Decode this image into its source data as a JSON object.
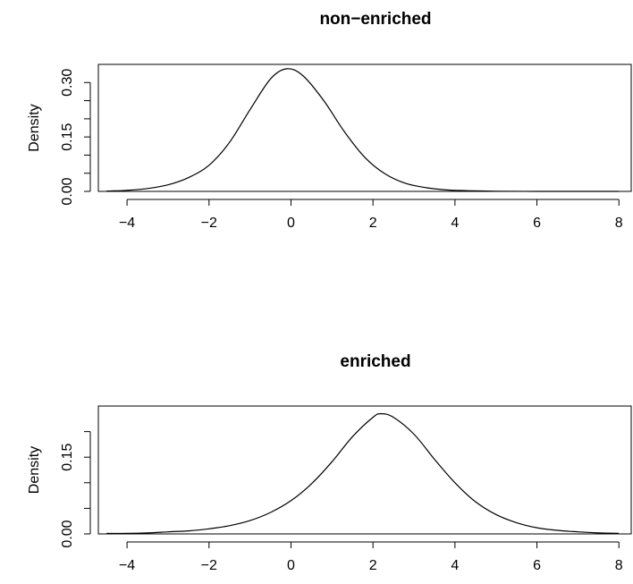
{
  "chart_data": [
    {
      "type": "line",
      "title": "non−enriched",
      "xlabel": "",
      "ylabel": "Density",
      "xlim": [
        -4.7,
        8.3
      ],
      "ylim": [
        0,
        0.35
      ],
      "x_ticks": [
        -4,
        -2,
        0,
        2,
        4,
        6,
        8
      ],
      "x_tick_labels": [
        "−4",
        "−2",
        "0",
        "2",
        "4",
        "6",
        "8"
      ],
      "y_ticks": [
        0.0,
        0.05,
        0.1,
        0.15,
        0.2,
        0.25,
        0.3
      ],
      "y_tick_labels": [
        "0.00",
        "",
        "",
        "0.15",
        "",
        "",
        "0.30"
      ],
      "series": [
        {
          "x": [
            -4.5,
            -4.0,
            -3.5,
            -3.0,
            -2.5,
            -2.0,
            -1.5,
            -1.0,
            -0.5,
            -0.1,
            0.3,
            0.8,
            1.3,
            1.8,
            2.3,
            2.8,
            3.3,
            3.8,
            4.3,
            5.0,
            6.0,
            7.0,
            8.0
          ],
          "y": [
            0.001,
            0.003,
            0.008,
            0.018,
            0.038,
            0.072,
            0.135,
            0.225,
            0.31,
            0.338,
            0.318,
            0.25,
            0.165,
            0.094,
            0.048,
            0.022,
            0.01,
            0.004,
            0.002,
            0.0005,
            0.0001,
            0.0,
            0.0
          ]
        }
      ]
    },
    {
      "type": "line",
      "title": "enriched",
      "xlabel": "",
      "ylabel": "Density",
      "xlim": [
        -4.7,
        8.3
      ],
      "ylim": [
        0,
        0.25
      ],
      "x_ticks": [
        -4,
        -2,
        0,
        2,
        4,
        6,
        8
      ],
      "x_tick_labels": [
        "−4",
        "−2",
        "0",
        "2",
        "4",
        "6",
        "8"
      ],
      "y_ticks": [
        0.0,
        0.05,
        0.1,
        0.15,
        0.2
      ],
      "y_tick_labels": [
        "0.00",
        "",
        "",
        "0.15",
        ""
      ],
      "series": [
        {
          "x": [
            -4.5,
            -4.0,
            -3.5,
            -3.0,
            -2.5,
            -2.0,
            -1.5,
            -1.0,
            -0.5,
            0.0,
            0.5,
            1.0,
            1.5,
            2.0,
            2.2,
            2.5,
            3.0,
            3.5,
            4.0,
            4.5,
            5.0,
            5.5,
            6.0,
            6.5,
            7.0,
            7.5,
            8.0
          ],
          "y": [
            0.001,
            0.001,
            0.002,
            0.004,
            0.006,
            0.01,
            0.016,
            0.026,
            0.042,
            0.065,
            0.098,
            0.141,
            0.19,
            0.228,
            0.235,
            0.228,
            0.195,
            0.146,
            0.1,
            0.063,
            0.038,
            0.022,
            0.012,
            0.007,
            0.004,
            0.002,
            0.001
          ]
        }
      ]
    }
  ]
}
